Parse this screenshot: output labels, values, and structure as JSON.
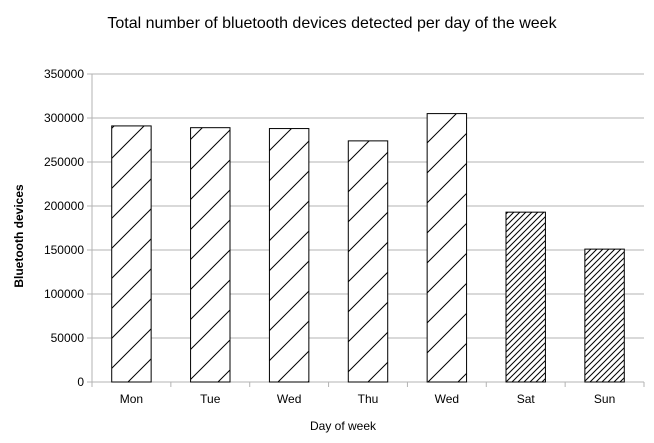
{
  "chart_data": {
    "type": "bar",
    "title": "Total number of bluetooth devices detected per day of the week",
    "xlabel": "Day of week",
    "ylabel": "Bluetooth devices",
    "categories": [
      "Mon",
      "Tue",
      "Wed",
      "Thu",
      "Wed",
      "Sat",
      "Sun"
    ],
    "values": [
      291000,
      289000,
      288000,
      274000,
      305000,
      193000,
      151000
    ],
    "ylim": [
      0,
      350000
    ],
    "yticks": [
      "0",
      "50000",
      "100000",
      "150000",
      "200000",
      "250000",
      "300000",
      "350000"
    ],
    "grid": true,
    "legend": "none",
    "fill_patterns": [
      "wide-hatch",
      "wide-hatch",
      "wide-hatch",
      "wide-hatch",
      "wide-hatch",
      "dense-hatch",
      "dense-hatch"
    ],
    "colors": {
      "bar_stroke": "#000000",
      "bar_fill": "#ffffff",
      "grid": "#b3b3b3",
      "axis": "#b3b3b3"
    }
  }
}
